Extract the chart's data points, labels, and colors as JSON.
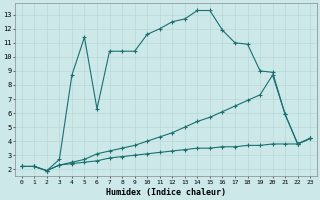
{
  "xlabel": "Humidex (Indice chaleur)",
  "bg_color": "#cce8e8",
  "grid_color": "#b8d8d8",
  "line_color": "#1a7070",
  "xlim": [
    -0.5,
    23.5
  ],
  "ylim": [
    1.5,
    13.8
  ],
  "xticks": [
    0,
    1,
    2,
    3,
    4,
    5,
    6,
    7,
    8,
    9,
    10,
    11,
    12,
    13,
    14,
    15,
    16,
    17,
    18,
    19,
    20,
    21,
    22,
    23
  ],
  "yticks": [
    2,
    3,
    4,
    5,
    6,
    7,
    8,
    9,
    10,
    11,
    12,
    13
  ],
  "line1_x": [
    0,
    1,
    2,
    3,
    4,
    5,
    6,
    7,
    8,
    9,
    10,
    11,
    12,
    13,
    14,
    15,
    16,
    17,
    18,
    19,
    20,
    21,
    22,
    23
  ],
  "line1_y": [
    2.2,
    2.2,
    1.9,
    2.7,
    8.7,
    11.4,
    6.3,
    10.4,
    10.4,
    10.4,
    11.6,
    12.0,
    12.5,
    12.7,
    13.3,
    13.3,
    11.9,
    11.0,
    10.9,
    9.0,
    8.9,
    5.9,
    3.8,
    4.2
  ],
  "line2_x": [
    0,
    1,
    2,
    3,
    4,
    5,
    6,
    7,
    8,
    9,
    10,
    11,
    12,
    13,
    14,
    15,
    16,
    17,
    18,
    19,
    20,
    21,
    22,
    23
  ],
  "line2_y": [
    2.2,
    2.2,
    1.9,
    2.3,
    2.5,
    2.7,
    3.1,
    3.3,
    3.5,
    3.7,
    4.0,
    4.3,
    4.6,
    5.0,
    5.4,
    5.7,
    6.1,
    6.5,
    6.9,
    7.3,
    8.7,
    5.9,
    3.8,
    4.2
  ],
  "line3_x": [
    0,
    1,
    2,
    3,
    4,
    5,
    6,
    7,
    8,
    9,
    10,
    11,
    12,
    13,
    14,
    15,
    16,
    17,
    18,
    19,
    20,
    21,
    22,
    23
  ],
  "line3_y": [
    2.2,
    2.2,
    1.9,
    2.3,
    2.4,
    2.5,
    2.6,
    2.8,
    2.9,
    3.0,
    3.1,
    3.2,
    3.3,
    3.4,
    3.5,
    3.5,
    3.6,
    3.6,
    3.7,
    3.7,
    3.8,
    3.8,
    3.8,
    4.2
  ]
}
